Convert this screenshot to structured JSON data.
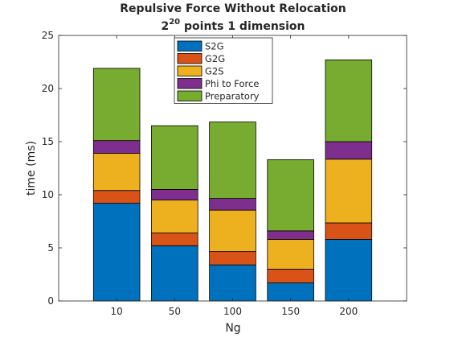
{
  "chart_data": {
    "type": "bar",
    "stacked": true,
    "title_line1": "Repulsive Force Without Relocation",
    "title_line2_base": "2",
    "title_line2_exp": "20",
    "title_line2_rest": " points 1 dimension",
    "xlabel": "Ng",
    "ylabel": "time (ms)",
    "categories": [
      "10",
      "50",
      "100",
      "150",
      "200"
    ],
    "ylim": [
      0,
      25
    ],
    "yticks": [
      "0",
      "5",
      "10",
      "15",
      "20",
      "25"
    ],
    "legend_position": "top-center",
    "series": [
      {
        "name": "S2G",
        "color": "#0072BD",
        "values": [
          9.2,
          5.2,
          3.4,
          1.7,
          5.8
        ]
      },
      {
        "name": "G2G",
        "color": "#D95319",
        "values": [
          1.2,
          1.2,
          1.25,
          1.3,
          1.55
        ]
      },
      {
        "name": "G2S",
        "color": "#EDB120",
        "values": [
          3.5,
          3.1,
          3.9,
          2.8,
          6.0
        ]
      },
      {
        "name": "Phi to Force",
        "color": "#7E2F8E",
        "values": [
          1.2,
          1.0,
          1.1,
          0.8,
          1.65
        ]
      },
      {
        "name": "Preparatory",
        "color": "#77AC30",
        "values": [
          6.8,
          6.0,
          7.2,
          6.7,
          7.7
        ]
      }
    ]
  }
}
